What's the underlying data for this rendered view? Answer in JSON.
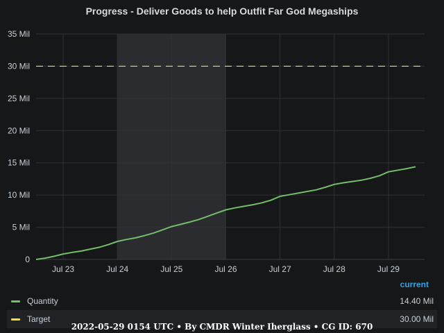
{
  "chart_data": {
    "type": "line",
    "title": "Progress - Deliver Goods to help Outfit Far God Megaships",
    "xlabel": "",
    "ylabel": "",
    "x_ticks": [
      "Jul 23",
      "Jul 24",
      "Jul 25",
      "Jul 26",
      "Jul 27",
      "Jul 28",
      "Jul 29"
    ],
    "y_ticks": [
      "0",
      "5 Mil",
      "10 Mil",
      "15 Mil",
      "20 Mil",
      "25 Mil",
      "30 Mil",
      "35 Mil"
    ],
    "ylim": [
      0,
      35
    ],
    "y_unit": "million",
    "xlim": [
      "2022-07-22T12:00",
      "2022-07-29T16:00"
    ],
    "highlight_region": [
      "2022-07-24",
      "2022-07-26"
    ],
    "grid": true,
    "legend_placement": "bottom",
    "series": [
      {
        "name": "Quantity",
        "color": "#73bf69",
        "points": [
          [
            "2022-07-22T12:00",
            0.0
          ],
          [
            "2022-07-22T16:00",
            0.2
          ],
          [
            "2022-07-22T20:00",
            0.5
          ],
          [
            "2022-07-23T00:00",
            0.85
          ],
          [
            "2022-07-23T04:00",
            1.1
          ],
          [
            "2022-07-23T08:00",
            1.3
          ],
          [
            "2022-07-23T12:00",
            1.6
          ],
          [
            "2022-07-23T16:00",
            1.9
          ],
          [
            "2022-07-23T20:00",
            2.3
          ],
          [
            "2022-07-24T00:00",
            2.8
          ],
          [
            "2022-07-24T04:00",
            3.1
          ],
          [
            "2022-07-24T08:00",
            3.35
          ],
          [
            "2022-07-24T12:00",
            3.7
          ],
          [
            "2022-07-24T16:00",
            4.1
          ],
          [
            "2022-07-24T20:00",
            4.6
          ],
          [
            "2022-07-25T00:00",
            5.1
          ],
          [
            "2022-07-25T04:00",
            5.45
          ],
          [
            "2022-07-25T08:00",
            5.8
          ],
          [
            "2022-07-25T12:00",
            6.2
          ],
          [
            "2022-07-25T16:00",
            6.7
          ],
          [
            "2022-07-25T20:00",
            7.2
          ],
          [
            "2022-07-26T00:00",
            7.7
          ],
          [
            "2022-07-26T04:00",
            8.0
          ],
          [
            "2022-07-26T08:00",
            8.25
          ],
          [
            "2022-07-26T12:00",
            8.5
          ],
          [
            "2022-07-26T16:00",
            8.8
          ],
          [
            "2022-07-26T20:00",
            9.2
          ],
          [
            "2022-07-27T00:00",
            9.8
          ],
          [
            "2022-07-27T04:00",
            10.05
          ],
          [
            "2022-07-27T08:00",
            10.3
          ],
          [
            "2022-07-27T12:00",
            10.55
          ],
          [
            "2022-07-27T16:00",
            10.8
          ],
          [
            "2022-07-27T20:00",
            11.2
          ],
          [
            "2022-07-28T00:00",
            11.65
          ],
          [
            "2022-07-28T04:00",
            11.9
          ],
          [
            "2022-07-28T08:00",
            12.1
          ],
          [
            "2022-07-28T12:00",
            12.3
          ],
          [
            "2022-07-28T16:00",
            12.6
          ],
          [
            "2022-07-28T20:00",
            13.0
          ],
          [
            "2022-07-29T00:00",
            13.6
          ],
          [
            "2022-07-29T08:00",
            14.1
          ],
          [
            "2022-07-29T12:00",
            14.4
          ]
        ]
      },
      {
        "name": "Target",
        "color": "#fade2a",
        "dashed": true,
        "value": 30
      }
    ]
  },
  "legend": {
    "header": "current",
    "rows": [
      {
        "name": "Quantity",
        "value": "14.40 Mil",
        "color": "#73bf69"
      },
      {
        "name": "Target",
        "value": "30.00 Mil",
        "color": "#fade2a"
      }
    ]
  },
  "footer": "2022-05-29 0154 UTC • By CMDR Winter Iherglass • CG ID: 670"
}
